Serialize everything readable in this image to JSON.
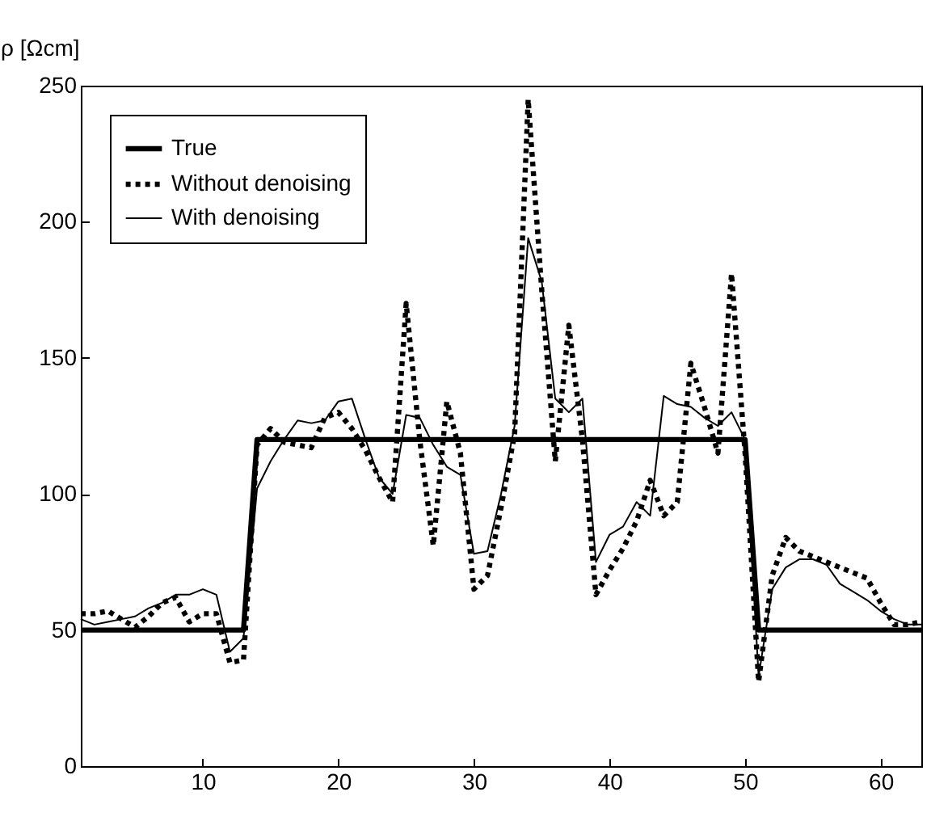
{
  "chart_data": {
    "type": "line",
    "ylabel": "ρ [Ωcm]",
    "x": [
      1,
      2,
      3,
      4,
      5,
      6,
      7,
      8,
      9,
      10,
      11,
      12,
      13,
      14,
      15,
      16,
      17,
      18,
      19,
      20,
      21,
      22,
      23,
      24,
      25,
      26,
      27,
      28,
      29,
      30,
      31,
      32,
      33,
      34,
      35,
      36,
      37,
      38,
      39,
      40,
      41,
      42,
      43,
      44,
      45,
      46,
      47,
      48,
      49,
      50,
      51,
      52,
      53,
      54,
      55,
      56,
      57,
      58,
      59,
      60,
      61,
      62,
      63
    ],
    "xlim": [
      1,
      63
    ],
    "xticks": [
      10,
      20,
      30,
      40,
      50,
      60
    ],
    "ylim": [
      0,
      250
    ],
    "yticks": [
      0,
      50,
      100,
      150,
      200,
      250
    ],
    "grid": false,
    "legend": "top left",
    "marker": "none",
    "series": [
      {
        "name": "True",
        "color": "#000000",
        "line_style": "solid",
        "values": [
          50,
          50,
          50,
          50,
          50,
          50,
          50,
          50,
          50,
          50,
          50,
          50,
          50,
          120,
          120,
          120,
          120,
          120,
          120,
          120,
          120,
          120,
          120,
          120,
          120,
          120,
          120,
          120,
          120,
          120,
          120,
          120,
          120,
          120,
          120,
          120,
          120,
          120,
          120,
          120,
          120,
          120,
          120,
          120,
          120,
          120,
          120,
          120,
          120,
          120,
          50,
          50,
          50,
          50,
          50,
          50,
          50,
          50,
          50,
          50,
          50,
          50,
          50
        ]
      },
      {
        "name": "Without denoising",
        "color": "#000000",
        "line_style": "dotted",
        "values": [
          56,
          56,
          57,
          54,
          51,
          55,
          60,
          62,
          53,
          56,
          56,
          38,
          39,
          118,
          124,
          119,
          118,
          117,
          128,
          130,
          124,
          116,
          106,
          97,
          170,
          120,
          81,
          134,
          115,
          65,
          70,
          95,
          122,
          245,
          175,
          112,
          162,
          120,
          63,
          72,
          80,
          90,
          105,
          92,
          97,
          148,
          132,
          115,
          181,
          115,
          31,
          70,
          84,
          79,
          77,
          75,
          73,
          71,
          69,
          60,
          52,
          52,
          53
        ]
      },
      {
        "name": "With denoising",
        "color": "#000000",
        "line_style": "solid",
        "values": [
          54,
          52,
          53,
          54,
          55,
          58,
          60,
          63,
          63,
          65,
          63,
          42,
          47,
          102,
          112,
          120,
          127,
          126,
          127,
          134,
          135,
          120,
          106,
          100,
          129,
          128,
          118,
          110,
          107,
          78,
          79,
          100,
          125,
          194,
          178,
          135,
          130,
          135,
          75,
          85,
          88,
          97,
          92,
          136,
          133,
          132,
          128,
          125,
          130,
          120,
          33,
          65,
          73,
          76,
          76,
          74,
          67,
          64,
          61,
          57,
          54,
          52,
          52
        ]
      }
    ]
  }
}
